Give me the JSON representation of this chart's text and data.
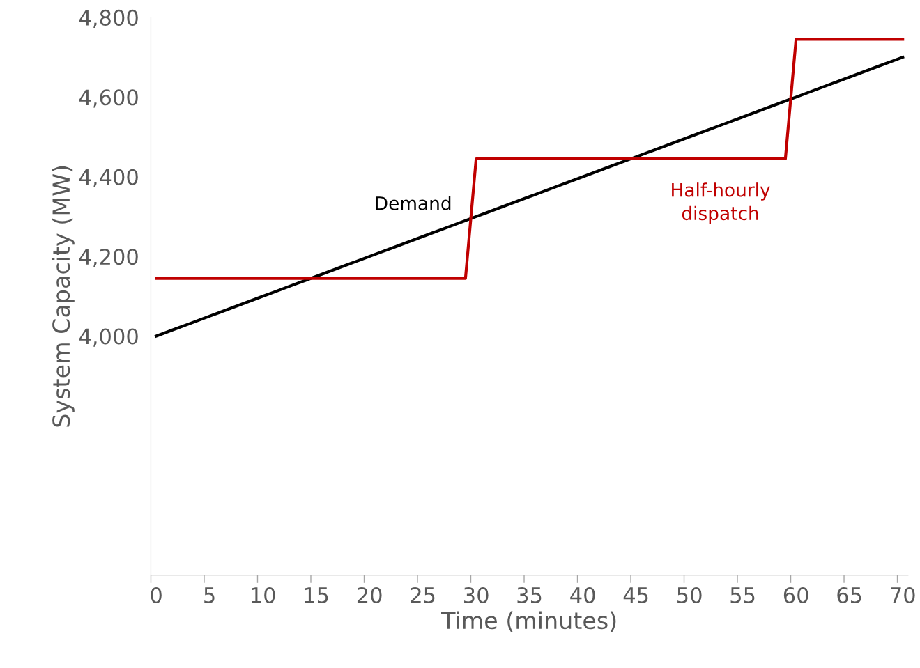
{
  "chart_data": {
    "type": "line",
    "xlabel": "Time (minutes)",
    "ylabel": "System Capacity (MW)",
    "categories": [
      "0",
      null,
      null,
      null,
      null,
      "5",
      null,
      null,
      null,
      null,
      "10",
      null,
      null,
      null,
      null,
      "15",
      null,
      null,
      null,
      null,
      "20",
      null,
      null,
      null,
      null,
      "25",
      null,
      null,
      null,
      null,
      "30",
      null,
      null,
      null,
      null,
      "35",
      null,
      null,
      null,
      null,
      "40",
      null,
      null,
      null,
      null,
      "45",
      null,
      null,
      null,
      null,
      "50",
      null,
      null,
      null,
      null,
      "55",
      null,
      null,
      null,
      null,
      "60",
      null,
      null,
      null,
      null,
      "65",
      null,
      null,
      null,
      null,
      "70"
    ],
    "ylim": [
      3400,
      4800
    ],
    "yticks": [
      {
        "value": 4000,
        "label": "4,000"
      },
      {
        "value": 4200,
        "label": "4,200"
      },
      {
        "value": 4400,
        "label": "4,400"
      },
      {
        "value": 4600,
        "label": "4,600"
      },
      {
        "value": 4800,
        "label": "4,800"
      }
    ],
    "grid": false,
    "legend": false,
    "series": [
      {
        "color": "#000000",
        "values": [
          4000,
          4010,
          4020,
          4030,
          4040,
          4050,
          4060,
          4070,
          4080,
          4090,
          4100,
          4110,
          4120,
          4130,
          4140,
          4150,
          4160,
          4170,
          4180,
          4190,
          4200,
          4210,
          4220,
          4230,
          4240,
          4250,
          4260,
          4270,
          4280,
          4290,
          4300,
          4310,
          4320,
          4330,
          4340,
          4350,
          4360,
          4370,
          4380,
          4390,
          4400,
          4410,
          4420,
          4430,
          4440,
          4450,
          4460,
          4470,
          4480,
          4490,
          4500,
          4510,
          4520,
          4530,
          4540,
          4550,
          4560,
          4570,
          4580,
          4590,
          4600,
          4610,
          4620,
          4630,
          4640,
          4650,
          4660,
          4670,
          4680,
          4690,
          4700
        ]
      },
      {
        "color": "#c00000",
        "values": [
          4145,
          4145,
          4145,
          4145,
          4145,
          4145,
          4145,
          4145,
          4145,
          4145,
          4145,
          4145,
          4145,
          4145,
          4145,
          4145,
          4145,
          4145,
          4145,
          4145,
          4145,
          4145,
          4145,
          4145,
          4145,
          4145,
          4145,
          4145,
          4145,
          4145,
          4445,
          4445,
          4445,
          4445,
          4445,
          4445,
          4445,
          4445,
          4445,
          4445,
          4445,
          4445,
          4445,
          4445,
          4445,
          4445,
          4445,
          4445,
          4445,
          4445,
          4445,
          4445,
          4445,
          4445,
          4445,
          4445,
          4445,
          4445,
          4445,
          4445,
          4745,
          4745,
          4745,
          4745,
          4745,
          4745,
          4745,
          4745,
          4745,
          4745,
          4745
        ]
      }
    ],
    "annotations": [
      "Demand",
      "Half-hourly\ndispatch"
    ]
  }
}
